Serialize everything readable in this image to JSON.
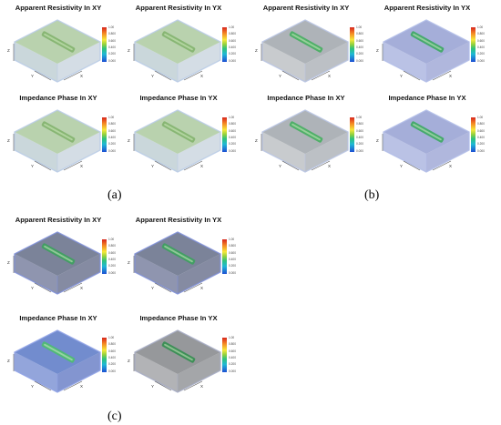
{
  "figure": {
    "groups": [
      {
        "label": "(a)",
        "panels": [
          {
            "title": "Apparent Resistivity In XY",
            "theme": "a"
          },
          {
            "title": "Apparent Resistivity In YX",
            "theme": "a"
          },
          {
            "title": "Impedance Phase In XY",
            "theme": "a"
          },
          {
            "title": "Impedance Phase In YX",
            "theme": "a"
          }
        ]
      },
      {
        "label": "(b)",
        "panels": [
          {
            "title": "Apparent Resistivity In XY",
            "theme": "b_gray"
          },
          {
            "title": "Apparent Resistivity In YX",
            "theme": "b_blue"
          },
          {
            "title": "Impedance Phase In XY",
            "theme": "b_gray"
          },
          {
            "title": "Impedance Phase In YX",
            "theme": "b_blue"
          }
        ]
      },
      {
        "label": "(c)",
        "panels": [
          {
            "title": "Apparent Resistivity In XY",
            "theme": "c_dark"
          },
          {
            "title": "Apparent Resistivity In YX",
            "theme": "c_dark"
          },
          {
            "title": "Impedance Phase In XY",
            "theme": "c_blue"
          },
          {
            "title": "Impedance Phase In YX",
            "theme": "c_gray"
          }
        ]
      }
    ],
    "colorbar": {
      "ticks": [
        "1.00",
        "0.800",
        "0.600",
        "0.400",
        "0.200",
        "0.000"
      ],
      "colors": [
        "#d7261e",
        "#f58a24",
        "#f6e83a",
        "#8ed03f",
        "#2ec27e",
        "#1fb8d6",
        "#1d4fd3"
      ]
    },
    "axis_labels": {
      "z": "Z",
      "y": "Y",
      "x": "X"
    },
    "themes": {
      "a": {
        "top": "#a7c79a",
        "left": "#b8c9cf",
        "right": "#c6d2dc",
        "edge": "#b9cbe6",
        "anomaly": "#7fb26a"
      },
      "b_gray": {
        "top": "#9aa0a6",
        "left": "#b5b9be",
        "right": "#a6abb1",
        "edge": "#b9c4e3",
        "anomaly": "#3fae5a"
      },
      "b_blue": {
        "top": "#8e9ad0",
        "left": "#a3addc",
        "right": "#959fd2",
        "edge": "#b2bde8",
        "anomaly": "#35a85a"
      },
      "c_dark": {
        "top": "#5a6480",
        "left": "#6a7294",
        "right": "#5c6483",
        "edge": "#7f8fd8",
        "anomaly": "#3aa35a"
      },
      "c_blue": {
        "top": "#4f6fc2",
        "left": "#6f87cf",
        "right": "#5a72c0",
        "edge": "#8fa2e6",
        "anomaly": "#4bc06a"
      },
      "c_gray": {
        "top": "#7c7e82",
        "left": "#98999d",
        "right": "#86888c",
        "edge": "#a6acc4",
        "anomaly": "#2f8d4c"
      }
    }
  }
}
